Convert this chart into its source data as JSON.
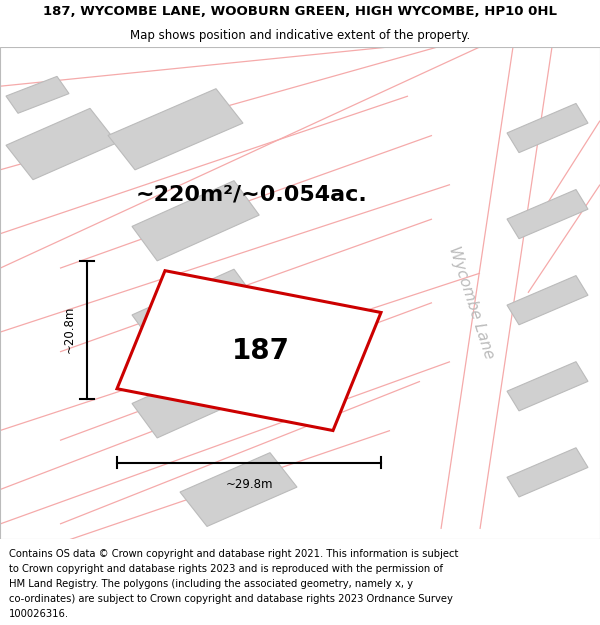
{
  "title_line1": "187, WYCOMBE LANE, WOOBURN GREEN, HIGH WYCOMBE, HP10 0HL",
  "title_line2": "Map shows position and indicative extent of the property.",
  "footer_text": "Contains OS data © Crown copyright and database right 2021. This information is subject to Crown copyright and database rights 2023 and is reproduced with the permission of HM Land Registry. The polygons (including the associated geometry, namely x, y co-ordinates) are subject to Crown copyright and database rights 2023 Ordnance Survey 100026316.",
  "area_label": "~220m²/~0.054ac.",
  "number_label": "187",
  "width_label": "~29.8m",
  "height_label": "~20.8m",
  "road_label": "Wycombe Lane",
  "map_bg": "#f7f4f4",
  "building_fill": "#d0d0d0",
  "building_edge": "#bbbbbb",
  "road_line_color": "#f5aaaa",
  "highlight_color": "#cc0000",
  "title_fontsize": 9.5,
  "subtitle_fontsize": 8.5,
  "footer_fontsize": 7.2,
  "area_fontsize": 16,
  "number_fontsize": 20,
  "road_label_fontsize": 11,
  "dim_fontsize": 8.5
}
